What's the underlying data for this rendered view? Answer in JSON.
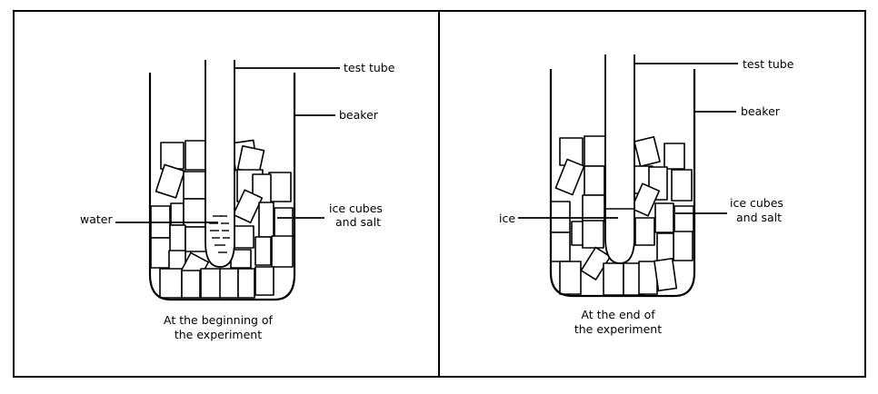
{
  "panels": [
    {
      "labels": {
        "test_tube": "test tube",
        "beaker": "beaker",
        "ice_cubes_line1": "ice cubes",
        "ice_cubes_line2": "and salt",
        "inner": "water"
      },
      "caption": [
        "At the beginning of",
        "the experiment"
      ]
    },
    {
      "labels": {
        "test_tube": "test tube",
        "beaker": "beaker",
        "ice_cubes_line1": "ice cubes",
        "ice_cubes_line2": "and salt",
        "inner": "ice"
      },
      "caption": [
        "At the end of",
        "the experiment"
      ]
    }
  ]
}
